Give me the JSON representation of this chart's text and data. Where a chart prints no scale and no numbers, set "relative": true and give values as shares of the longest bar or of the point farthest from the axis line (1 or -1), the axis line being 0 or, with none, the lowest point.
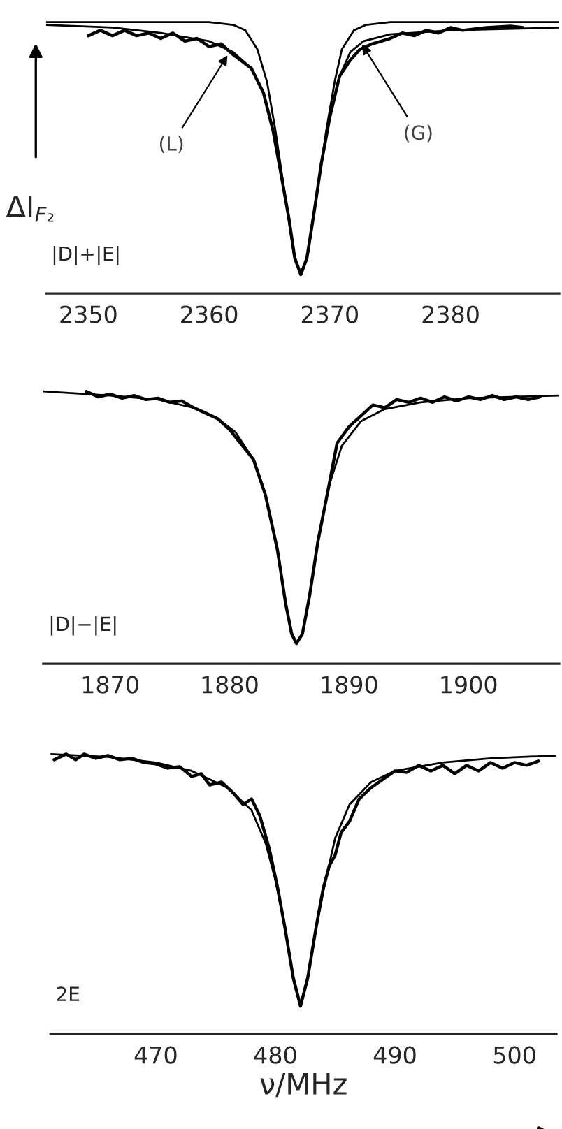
{
  "chart_data": [
    {
      "type": "line",
      "relative": true,
      "ylabel": "ΔI$_{F₂}$",
      "xlim": [
        2346.5,
        2389
      ],
      "xticks": [
        2350,
        2360,
        2370,
        2380
      ],
      "annotations": [
        "|D|+|E|",
        {
          "text": "(L)",
          "x": 2361.7,
          "y": 0.89
        },
        {
          "text": "(G)",
          "x": 2372.5,
          "y": 0.93
        }
      ],
      "series": [
        {
          "color": "#000000",
          "x": [
            2350,
            2351,
            2352,
            2353,
            2354,
            2355,
            2356,
            2357,
            2358,
            2359,
            2360,
            2361,
            2362,
            2363.5,
            2364.5,
            2365.3,
            2366,
            2366.6,
            2367.1,
            2367.6,
            2368.1,
            2368.7,
            2369.3,
            2370,
            2370.8,
            2371.7,
            2372.5,
            2373.5,
            2375,
            2376,
            2377,
            2378,
            2379,
            2380,
            2381,
            2383,
            2385,
            2386
          ],
          "values": [
            0.95,
            0.97,
            0.95,
            0.97,
            0.95,
            0.96,
            0.94,
            0.96,
            0.93,
            0.94,
            0.91,
            0.92,
            0.88,
            0.83,
            0.74,
            0.6,
            0.43,
            0.28,
            0.13,
            0.07,
            0.13,
            0.3,
            0.48,
            0.65,
            0.8,
            0.86,
            0.9,
            0.92,
            0.94,
            0.96,
            0.95,
            0.97,
            0.96,
            0.98,
            0.97,
            0.98,
            0.985,
            0.98
          ]
        },
        {
          "color": "#000000",
          "x": [
            2346.5,
            2352,
            2356,
            2360,
            2362,
            2363.5,
            2364.5,
            2365.3,
            2366,
            2366.6,
            2367.1,
            2367.6,
            2368.1,
            2368.7,
            2369.3,
            2370,
            2370.8,
            2371.7,
            2372.8,
            2375,
            2380,
            2389
          ],
          "values": [
            0.99,
            0.98,
            0.96,
            0.93,
            0.89,
            0.83,
            0.74,
            0.6,
            0.43,
            0.28,
            0.13,
            0.07,
            0.13,
            0.3,
            0.48,
            0.65,
            0.8,
            0.89,
            0.93,
            0.955,
            0.97,
            0.98
          ]
        },
        {
          "color": "#000000",
          "x": [
            2346.5,
            2360,
            2362,
            2363,
            2364,
            2364.8,
            2365.5,
            2366,
            2366.5,
            2367,
            2367.6,
            2368.2,
            2368.7,
            2369.2,
            2369.7,
            2370.4,
            2371,
            2372,
            2373,
            2375,
            2389
          ],
          "values": [
            1.0,
            1.0,
            0.99,
            0.97,
            0.9,
            0.78,
            0.6,
            0.45,
            0.3,
            0.15,
            0.07,
            0.15,
            0.3,
            0.45,
            0.6,
            0.78,
            0.9,
            0.97,
            0.99,
            1.0,
            1.0
          ]
        }
      ]
    },
    {
      "type": "line",
      "relative": true,
      "xlim": [
        1864.4,
        1907.6
      ],
      "xticks": [
        1870,
        1880,
        1890,
        1900
      ],
      "annotations": [
        "|D|−|E|"
      ],
      "series": [
        {
          "color": "#000000",
          "x": [
            1868,
            1869,
            1870,
            1871,
            1872,
            1873,
            1874,
            1875,
            1876,
            1877,
            1878,
            1879,
            1880,
            1882,
            1883,
            1884,
            1884.7,
            1885.2,
            1885.6,
            1886.1,
            1886.7,
            1887.4,
            1888.3,
            1889,
            1890,
            1891,
            1892,
            1893,
            1894,
            1895,
            1896,
            1897,
            1898,
            1899,
            1900,
            1901,
            1902,
            1903,
            1904,
            1905,
            1906
          ],
          "values": [
            1.0,
            0.98,
            0.99,
            0.975,
            0.985,
            0.97,
            0.975,
            0.96,
            0.965,
            0.94,
            0.92,
            0.9,
            0.86,
            0.75,
            0.62,
            0.42,
            0.22,
            0.11,
            0.075,
            0.11,
            0.25,
            0.45,
            0.65,
            0.81,
            0.87,
            0.91,
            0.95,
            0.94,
            0.97,
            0.96,
            0.975,
            0.96,
            0.98,
            0.965,
            0.98,
            0.97,
            0.985,
            0.97,
            0.98,
            0.97,
            0.98
          ]
        },
        {
          "color": "#000000",
          "x": [
            1864.4,
            1870,
            1874,
            1877,
            1879,
            1880.5,
            1882,
            1883,
            1884,
            1884.7,
            1885.2,
            1885.6,
            1886.1,
            1886.7,
            1887.4,
            1888.3,
            1889.4,
            1891,
            1893,
            1896,
            1900,
            1907.6
          ],
          "values": [
            1.0,
            0.985,
            0.97,
            0.94,
            0.9,
            0.85,
            0.75,
            0.62,
            0.42,
            0.22,
            0.11,
            0.075,
            0.11,
            0.25,
            0.45,
            0.65,
            0.8,
            0.89,
            0.935,
            0.96,
            0.975,
            0.985
          ]
        }
      ]
    },
    {
      "type": "line",
      "relative": true,
      "xlabel": "ν/MHz",
      "xlim": [
        461.2,
        503.5
      ],
      "xticks": [
        470,
        480,
        490,
        500
      ],
      "annotations": [
        "2E"
      ],
      "series": [
        {
          "color": "#000000",
          "x": [
            461.5,
            462.5,
            463.3,
            464,
            465,
            466,
            467,
            468,
            469,
            470,
            471,
            472,
            473,
            473.8,
            474.5,
            475.5,
            476.5,
            477.3,
            478,
            478.7,
            479.5,
            480.2,
            480.8,
            481.5,
            482.1,
            482.7,
            483.4,
            484,
            484.5,
            485,
            485.5,
            486.2,
            487,
            488,
            489,
            490,
            491,
            492,
            493,
            494,
            495,
            496,
            497,
            498,
            499,
            500,
            501,
            502
          ],
          "values": [
            0.98,
            1.0,
            0.98,
            1.0,
            0.985,
            0.995,
            0.98,
            0.985,
            0.97,
            0.965,
            0.95,
            0.955,
            0.92,
            0.93,
            0.89,
            0.9,
            0.86,
            0.82,
            0.84,
            0.78,
            0.66,
            0.52,
            0.38,
            0.2,
            0.1,
            0.2,
            0.38,
            0.52,
            0.6,
            0.64,
            0.72,
            0.76,
            0.84,
            0.88,
            0.91,
            0.94,
            0.935,
            0.96,
            0.94,
            0.96,
            0.93,
            0.96,
            0.94,
            0.97,
            0.95,
            0.97,
            0.96,
            0.975
          ]
        },
        {
          "color": "#000000",
          "x": [
            461.2,
            466,
            470,
            473,
            476,
            478,
            479.2,
            480,
            480.8,
            481.5,
            482.1,
            482.7,
            483.4,
            484.2,
            485,
            486.2,
            488,
            490,
            494,
            498,
            503.5
          ],
          "values": [
            1.0,
            0.99,
            0.97,
            0.94,
            0.88,
            0.8,
            0.68,
            0.55,
            0.38,
            0.2,
            0.1,
            0.2,
            0.38,
            0.55,
            0.7,
            0.82,
            0.9,
            0.94,
            0.97,
            0.985,
            0.995
          ]
        }
      ]
    }
  ]
}
